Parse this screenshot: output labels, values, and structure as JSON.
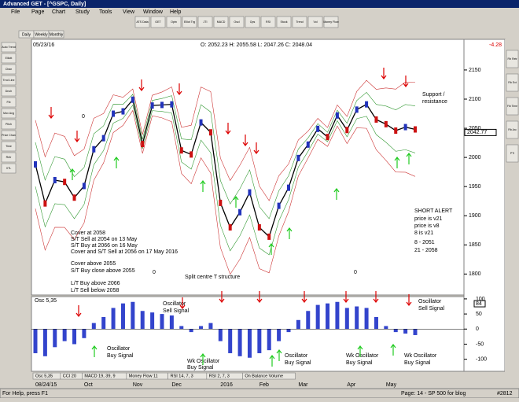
{
  "window": {
    "title": "Advanced GET - [^GSPC, Daily]",
    "menu": [
      "File",
      "Page",
      "Chart",
      "Study",
      "Tools",
      "View",
      "Window",
      "Help"
    ],
    "toolbar": [
      "ATS Data",
      "GET",
      "Optn",
      "Elliot Trg",
      "JTI",
      "MACD",
      "Oscl",
      "Ops",
      "RSI",
      "Stock",
      "Trend",
      "Vol",
      "Money Flow"
    ],
    "left_tools": [
      "Auto Trend",
      "Elliott",
      "Chan",
      "Trnd Line",
      "Dnch",
      "Fib",
      "Mov Avg",
      "Pitch",
      "Price Chan",
      "Time",
      "Retr",
      "XTL"
    ],
    "right_tools": [
      "Fib Retr",
      "Fib Ext",
      "Fib Time",
      "Fib Arc",
      "PTI"
    ],
    "tabs": [
      "Daily",
      "Weekly",
      "Monthly"
    ],
    "status": {
      "help": "For Help, press F1",
      "page": "Page: 14 - SP 500 for blog",
      "code": "#2812"
    }
  },
  "chart_data": [
    {
      "type": "line",
      "date": "05/23/16",
      "ohlc": "O: 2052.23   H: 2055.58   L: 2047.26   C: 2048.04",
      "change": "-4.28",
      "last": 2042.77,
      "values": [
        1988,
        1921,
        1961,
        1958,
        1931,
        1951,
        2014,
        2033,
        2075,
        2079,
        2099,
        2023,
        2089,
        2090,
        2091,
        2012,
        2005,
        2060,
        2043,
        1922,
        1880,
        1906,
        1940,
        1880,
        1864,
        1917,
        1948,
        1999,
        2022,
        2049,
        2035,
        2072,
        2047,
        2082,
        2091,
        2065,
        2057,
        2046,
        2052,
        2048
      ],
      "color": "#000000",
      "ylim": [
        1764,
        2185
      ],
      "yticks": [
        1800,
        1850,
        1900,
        1950,
        2000,
        2050,
        2100,
        2150
      ],
      "annotations": [
        "Cover at 2058",
        "S/T Sell at 2054 on 13 May",
        "S/T Buy at 2066 on 16 May",
        "Cover and  S/T Sell at 2056 on 17 May 2016",
        "Cover above 2055",
        "S/T Buy close above 2055",
        "L/T Buy above 2066",
        "L/T Sell below 2058",
        "Split centre T structure",
        "SHORT ALERT",
        "price is v21",
        "price is v8",
        "8 is v21",
        "8   - 2051",
        "21 - 2058",
        "Support /",
        "resistance",
        "0",
        "0",
        "0"
      ]
    },
    {
      "type": "bar",
      "title": "Osc 5,35",
      "categories": [
        "08/24/15",
        null,
        null,
        null,
        null,
        "Oct",
        null,
        null,
        null,
        null,
        "Nov",
        null,
        null,
        null,
        "Dec",
        null,
        null,
        null,
        null,
        "2016",
        null,
        null,
        null,
        "Feb",
        null,
        null,
        null,
        "Mar",
        null,
        null,
        null,
        null,
        "Apr",
        null,
        null,
        null,
        "May",
        null,
        null,
        null
      ],
      "values": [
        -80,
        -90,
        -60,
        -40,
        -50,
        -30,
        20,
        40,
        70,
        85,
        90,
        60,
        55,
        50,
        45,
        10,
        -10,
        10,
        20,
        -40,
        -80,
        -90,
        -95,
        -80,
        -70,
        -40,
        -10,
        30,
        60,
        80,
        85,
        90,
        70,
        75,
        70,
        40,
        10,
        -10,
        -15,
        -20
      ],
      "color": "#3344cc",
      "ylim": [
        -140,
        105
      ],
      "yticks": [
        100,
        50,
        0,
        -50,
        -100
      ],
      "current": 84,
      "studies": [
        "Osc 5,35",
        "CCI 20",
        "MACD 19, 39, 9",
        "Money Flow 11",
        "RSI 14, 7, 3",
        "RSI 2, 7, 3",
        "On Balance Volume"
      ],
      "annotations": [
        "Oscillator",
        "Sell Signal",
        "Oscillator",
        "Sell Signal",
        "Oscillator",
        "Buy Signal",
        "Wk Oscillator",
        "Buy Signal",
        "Oscillator",
        "Buy Signal",
        "Wk Oscillator",
        "Buy Signal",
        "Wk Oscillator",
        "Buy Signal"
      ]
    }
  ]
}
